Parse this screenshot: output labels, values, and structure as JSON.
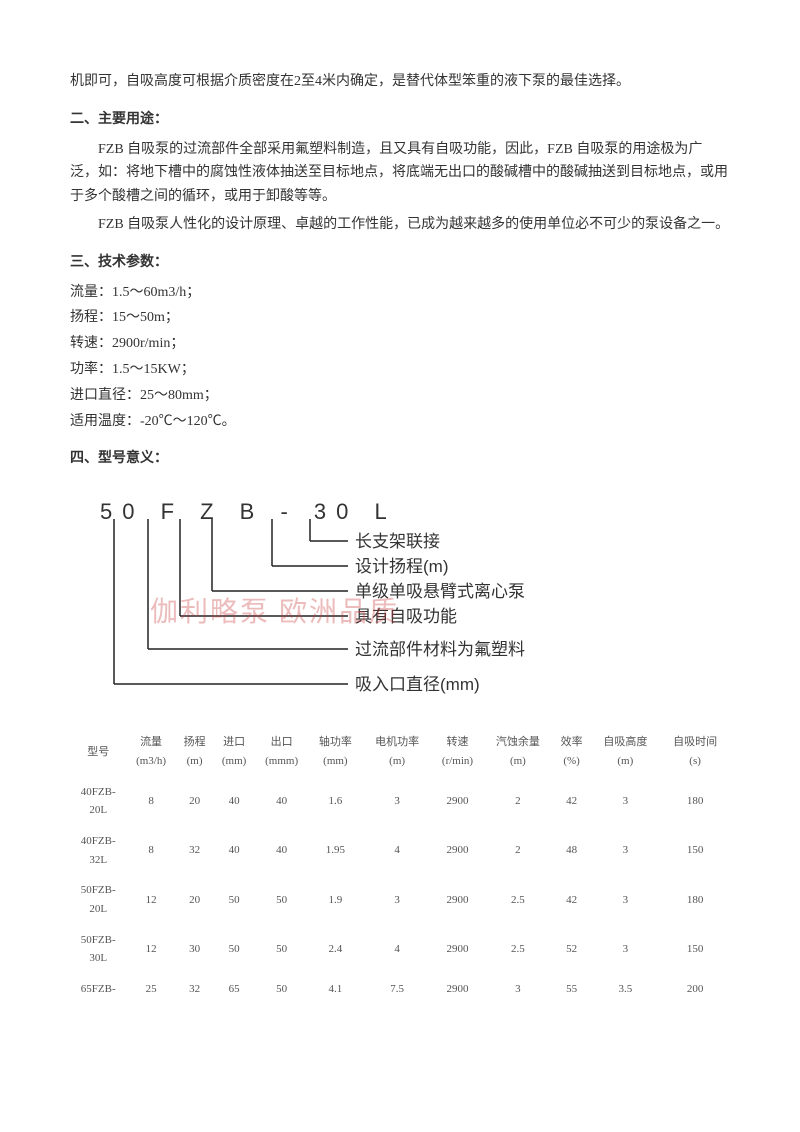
{
  "intro_tail": "机即可，自吸高度可根据介质密度在2至4米内确定，是替代体型笨重的液下泵的最佳选择。",
  "section2": {
    "heading": "二、主要用途：",
    "p1": "FZB 自吸泵的过流部件全部采用氟塑料制造，且又具有自吸功能，因此，FZB 自吸泵的用途极为广泛，如：将地下槽中的腐蚀性液体抽送至目标地点，将底端无出口的酸碱槽中的酸碱抽送到目标地点，或用于多个酸槽之间的循环，或用于卸酸等等。",
    "p2": "FZB 自吸泵人性化的设计原理、卓越的工作性能，已成为越来越多的使用单位必不可少的泵设备之一。"
  },
  "section3": {
    "heading": "三、技术参数：",
    "specs": [
      "流量：1.5～60m3/h；",
      "扬程：15～50m；",
      "转速：2900r/min；",
      "功率：1.5～15KW；",
      "进口直径：25～80mm；",
      "适用温度：-20℃～120℃。"
    ]
  },
  "section4": {
    "heading": "四、型号意义：",
    "model_code": "50 F Z B - 30 L",
    "labels": [
      "长支架联接",
      "设计扬程(m)",
      "单级单吸悬臂式离心泵",
      "具有自吸功能",
      "过流部件材料为氟塑料",
      "吸入口直径(mm)"
    ],
    "watermark": "伽利略泵   欧洲品质"
  },
  "table": {
    "columns": [
      {
        "h1": "型号",
        "h2": ""
      },
      {
        "h1": "流量",
        "h2": "(m3/h)"
      },
      {
        "h1": "扬程",
        "h2": "(m)"
      },
      {
        "h1": "进口",
        "h2": "(mm)"
      },
      {
        "h1": "出口",
        "h2": "(mmm)"
      },
      {
        "h1": "轴功率",
        "h2": "(mm)"
      },
      {
        "h1": "电机功率",
        "h2": "(m)"
      },
      {
        "h1": "转速",
        "h2": "(r/min)"
      },
      {
        "h1": "汽蚀余量",
        "h2": "(m)"
      },
      {
        "h1": "效率",
        "h2": "(%)"
      },
      {
        "h1": "自吸高度",
        "h2": "(m)"
      },
      {
        "h1": "自吸时间",
        "h2": "(s)"
      }
    ],
    "rows": [
      [
        "40FZB-20L",
        "8",
        "20",
        "40",
        "40",
        "1.6",
        "3",
        "2900",
        "2",
        "42",
        "3",
        "180"
      ],
      [
        "40FZB-32L",
        "8",
        "32",
        "40",
        "40",
        "1.95",
        "4",
        "2900",
        "2",
        "48",
        "3",
        "150"
      ],
      [
        "50FZB-20L",
        "12",
        "20",
        "50",
        "50",
        "1.9",
        "3",
        "2900",
        "2.5",
        "42",
        "3",
        "180"
      ],
      [
        "50FZB-30L",
        "12",
        "30",
        "50",
        "50",
        "2.4",
        "4",
        "2900",
        "2.5",
        "52",
        "3",
        "150"
      ],
      [
        "65FZB-",
        "25",
        "32",
        "65",
        "50",
        "4.1",
        "7.5",
        "2900",
        "3",
        "55",
        "3.5",
        "200"
      ]
    ]
  },
  "colors": {
    "text": "#333333",
    "table_text": "#555555",
    "watermark": "rgba(200,60,60,0.35)",
    "line": "#222222",
    "background": "#ffffff"
  }
}
